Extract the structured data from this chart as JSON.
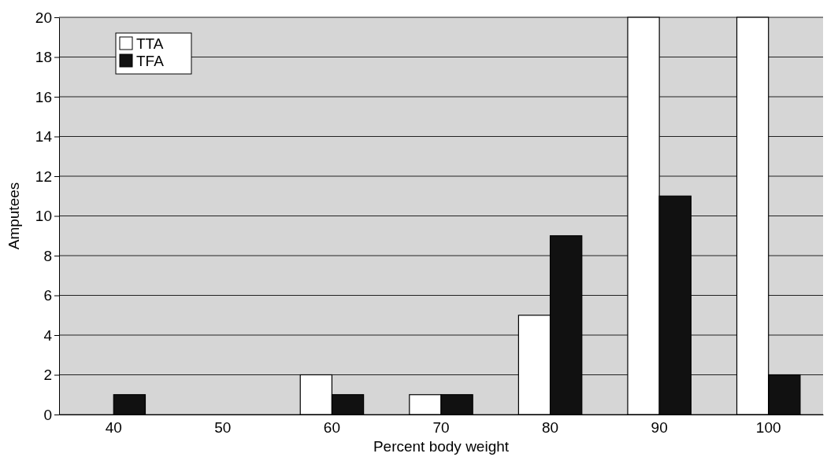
{
  "chart_data": {
    "type": "bar",
    "xlabel": "Percent body weight",
    "ylabel": "Amputees",
    "categories": [
      "40",
      "50",
      "60",
      "70",
      "80",
      "90",
      "100"
    ],
    "series": [
      {
        "name": "TTA",
        "color": "#ffffff",
        "values": [
          0,
          0,
          2,
          1,
          5,
          20,
          20
        ]
      },
      {
        "name": "TFA",
        "color": "#111111",
        "values": [
          1,
          0,
          1,
          1,
          9,
          11,
          2
        ]
      }
    ],
    "ylim": [
      0,
      20
    ],
    "yticks": [
      0,
      2,
      4,
      6,
      8,
      10,
      12,
      14,
      16,
      18,
      20
    ],
    "grid": "y",
    "legend": "top left"
  }
}
